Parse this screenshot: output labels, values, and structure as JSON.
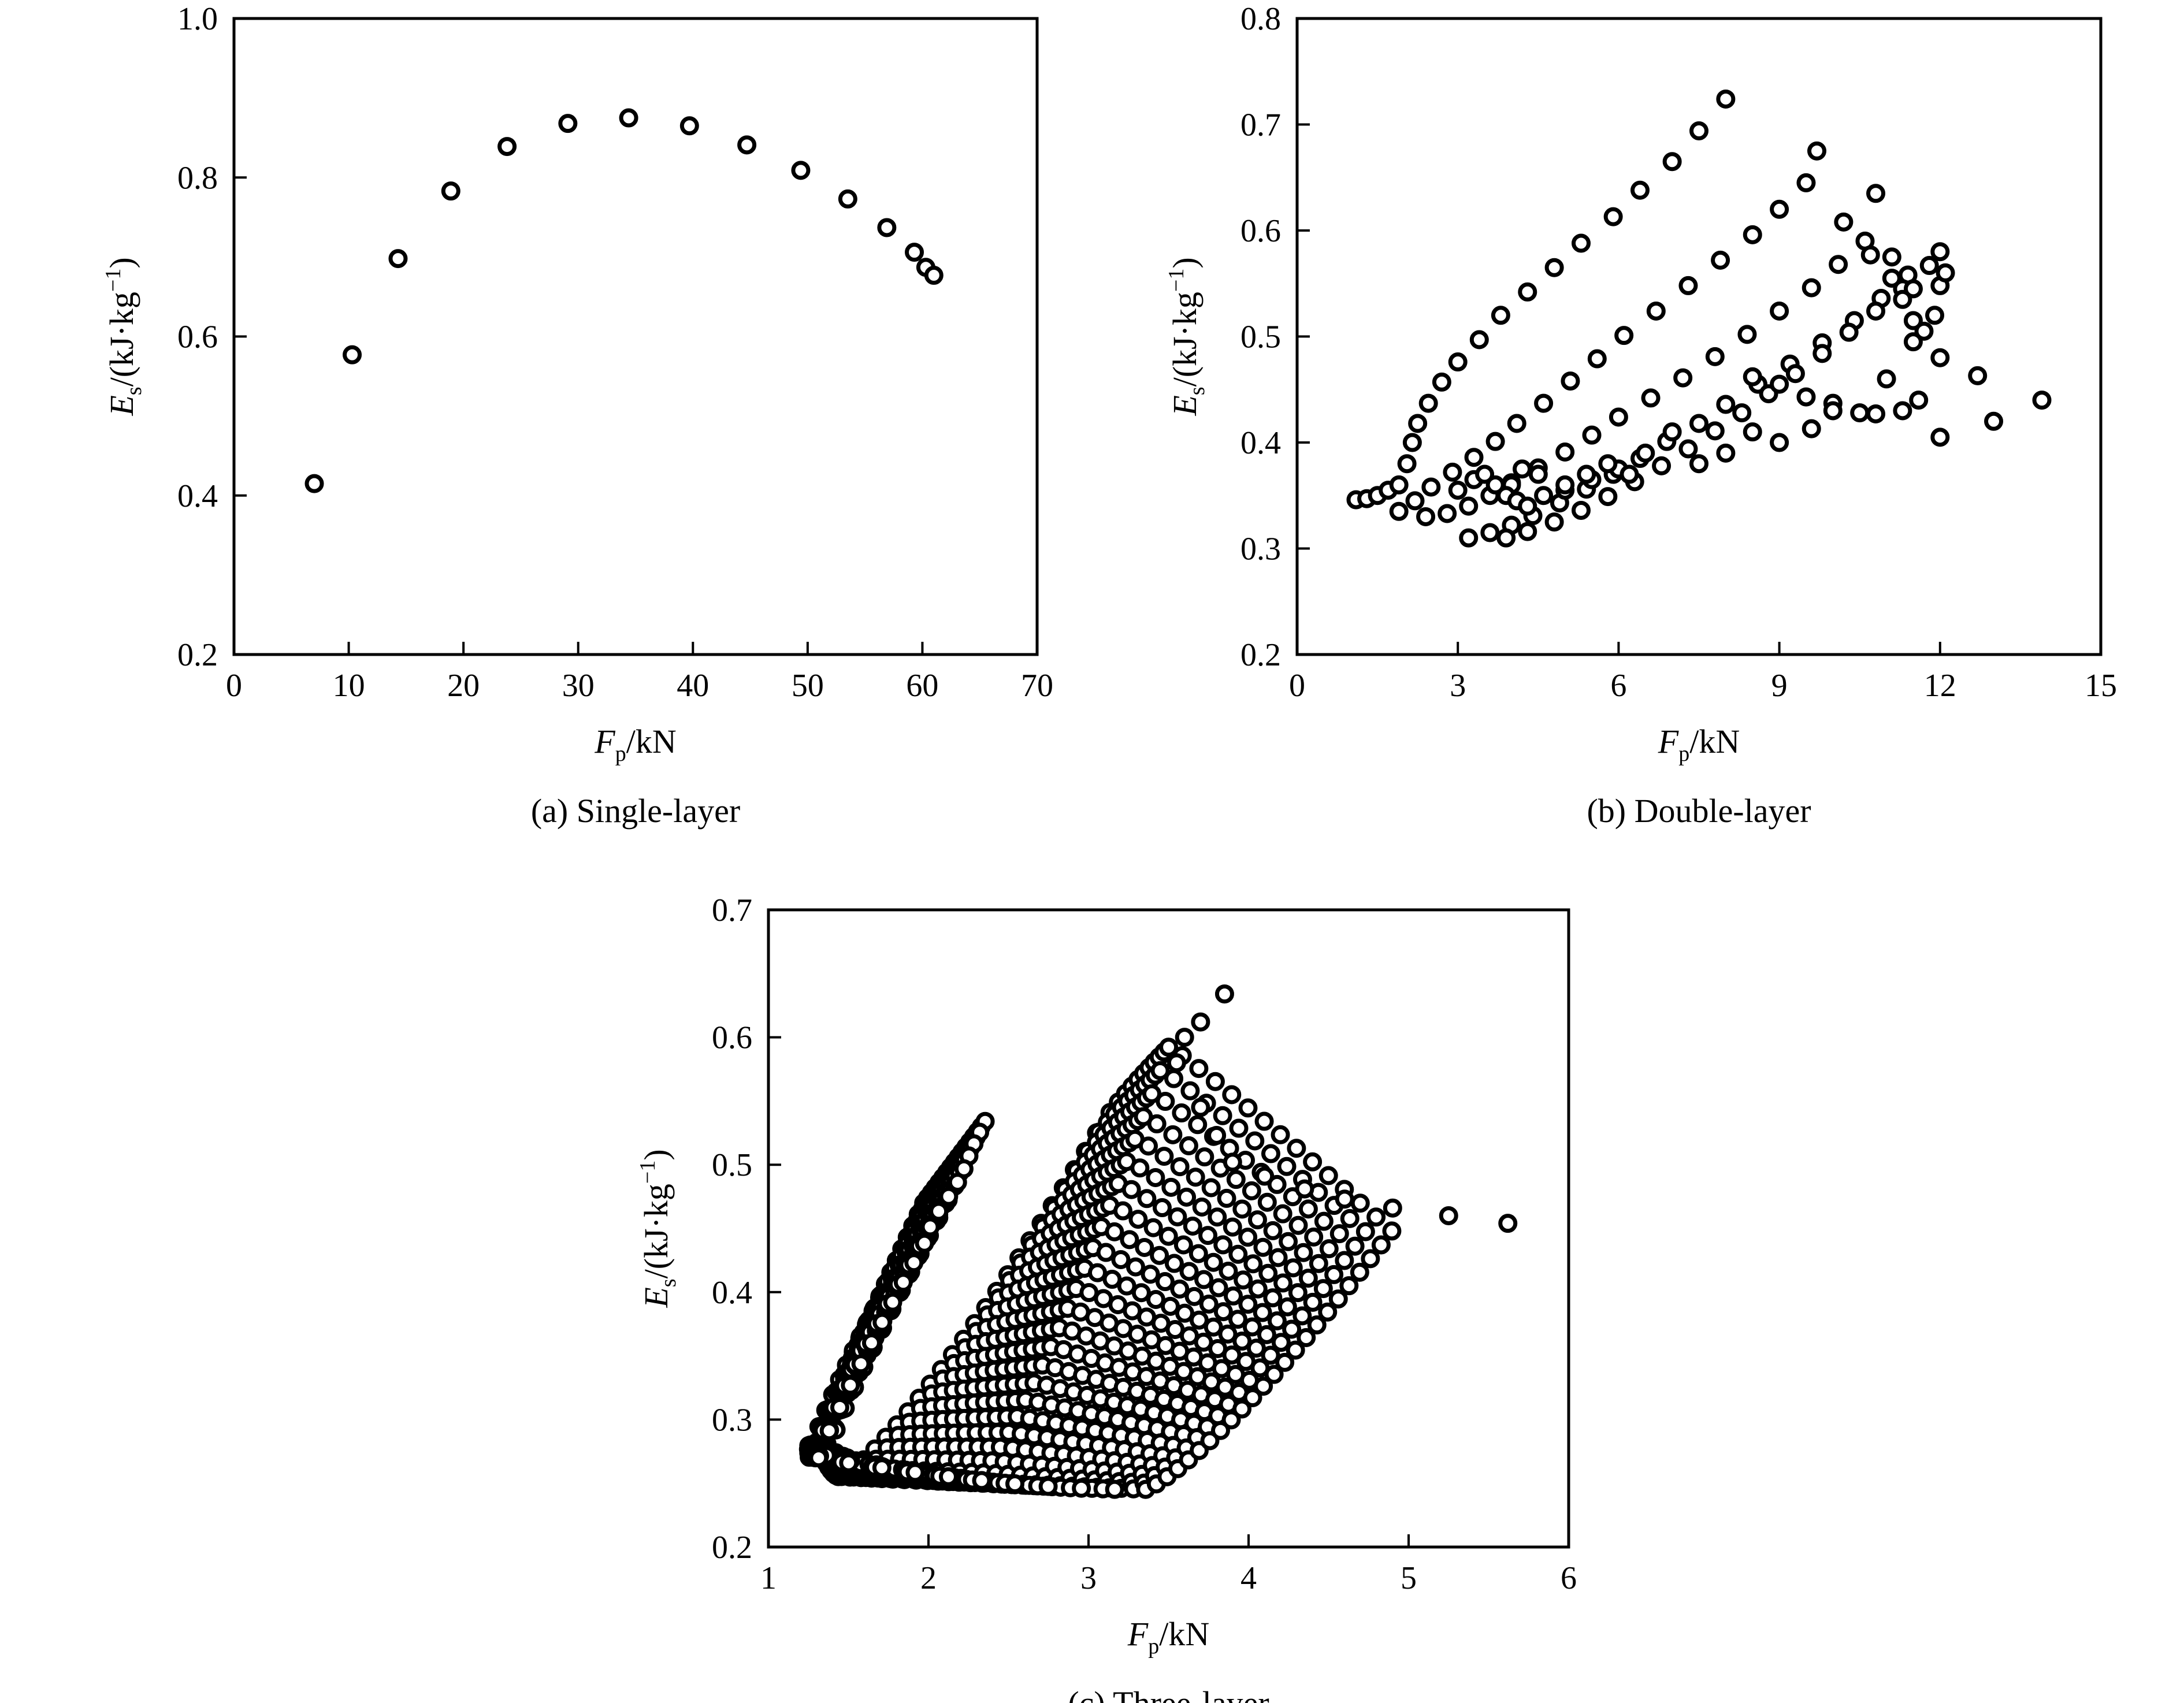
{
  "chart_data": [
    {
      "type": "scatter",
      "caption": "(a) Single-layer",
      "xlabel": {
        "main": "F",
        "sub": "p",
        "unit": "/kN"
      },
      "ylabel": {
        "main": "E",
        "sub": "s",
        "unit": "/(kJ·kg",
        "sup": "−1",
        "close": ")"
      },
      "xlim": [
        0,
        70
      ],
      "ylim": [
        0.2,
        1.0
      ],
      "xticks": [
        "0",
        "10",
        "20",
        "30",
        "40",
        "50",
        "60",
        "70"
      ],
      "yticks": [
        "0.2",
        "0.4",
        "0.6",
        "0.8",
        "1.0"
      ],
      "x": [
        7.0,
        10.3,
        14.3,
        18.9,
        23.8,
        29.1,
        34.4,
        39.7,
        44.7,
        49.4,
        53.5,
        56.9,
        59.3,
        60.3,
        61.0
      ],
      "y": [
        0.415,
        0.577,
        0.698,
        0.783,
        0.839,
        0.868,
        0.875,
        0.865,
        0.841,
        0.809,
        0.773,
        0.737,
        0.706,
        0.687,
        0.677
      ]
    },
    {
      "type": "scatter",
      "caption": "(b) Double-layer",
      "xlabel": {
        "main": "F",
        "sub": "p",
        "unit": "/kN"
      },
      "ylabel": {
        "main": "E",
        "sub": "s",
        "unit": "/(kJ·kg",
        "sup": "−1",
        "close": ")"
      },
      "xlim": [
        0,
        15
      ],
      "ylim": [
        0.2,
        0.8
      ],
      "xticks": [
        "0",
        "3",
        "6",
        "9",
        "12",
        "15"
      ],
      "yticks": [
        "0.2",
        "0.3",
        "0.4",
        "0.5",
        "0.6",
        "0.7",
        "0.8"
      ],
      "series": [
        {
          "x": [
            1.1,
            1.3,
            1.5,
            1.7,
            1.9,
            2.05,
            2.15,
            2.25,
            2.45,
            2.7,
            3.0,
            3.4,
            3.8,
            4.3,
            4.8,
            5.3,
            5.9,
            6.4,
            7.0,
            7.5,
            8.0
          ],
          "y": [
            0.346,
            0.347,
            0.35,
            0.355,
            0.36,
            0.38,
            0.4,
            0.418,
            0.437,
            0.457,
            0.476,
            0.497,
            0.52,
            0.542,
            0.565,
            0.588,
            0.613,
            0.638,
            0.665,
            0.694,
            0.724
          ]
        },
        {
          "x": [
            1.9,
            2.2,
            2.5,
            2.9,
            3.3,
            3.7,
            4.1,
            4.6,
            5.1,
            5.6,
            6.1,
            6.7,
            7.3,
            7.9,
            8.5,
            9.0,
            9.5
          ],
          "y": [
            0.335,
            0.345,
            0.358,
            0.372,
            0.386,
            0.401,
            0.418,
            0.437,
            0.458,
            0.479,
            0.501,
            0.524,
            0.548,
            0.572,
            0.596,
            0.62,
            0.645
          ]
        },
        {
          "x": [
            2.4,
            2.8,
            3.2,
            3.6,
            4.0,
            4.5,
            5.0,
            5.5,
            6.0,
            6.6,
            7.2,
            7.8,
            8.4,
            9.0,
            9.6,
            10.1,
            10.6
          ],
          "y": [
            0.33,
            0.333,
            0.34,
            0.35,
            0.362,
            0.376,
            0.391,
            0.407,
            0.424,
            0.442,
            0.461,
            0.481,
            0.502,
            0.524,
            0.546,
            0.568,
            0.59
          ]
        },
        {
          "x": [
            3.2,
            3.6,
            4.0,
            4.4,
            4.9,
            5.4,
            5.9,
            6.4,
            6.9,
            7.5,
            8.0,
            8.6,
            9.2,
            9.8,
            10.4,
            10.9,
            11.4
          ],
          "y": [
            0.31,
            0.315,
            0.322,
            0.331,
            0.343,
            0.356,
            0.37,
            0.385,
            0.401,
            0.418,
            0.436,
            0.455,
            0.474,
            0.494,
            0.515,
            0.536,
            0.558
          ]
        },
        {
          "x": [
            3.9,
            4.3,
            4.8,
            5.3,
            5.8,
            6.3,
            6.8,
            7.3,
            7.8,
            8.3,
            8.8,
            9.3,
            9.8,
            10.3,
            10.8,
            11.3,
            11.8,
            12.0
          ],
          "y": [
            0.31,
            0.316,
            0.325,
            0.336,
            0.349,
            0.363,
            0.378,
            0.394,
            0.411,
            0.428,
            0.446,
            0.465,
            0.484,
            0.504,
            0.524,
            0.545,
            0.567,
            0.58
          ]
        },
        {
          "x": [
            9.7,
            10.2,
            10.7,
            11.1,
            11.5,
            12.0
          ],
          "y": [
            0.675,
            0.608,
            0.577,
            0.555,
            0.545,
            0.548
          ]
        },
        {
          "x": [
            10.8,
            11.1,
            11.3,
            11.5,
            11.7,
            11.9,
            12.1
          ],
          "y": [
            0.635,
            0.575,
            0.535,
            0.515,
            0.505,
            0.52,
            0.56
          ]
        },
        {
          "x": [
            8.5,
            9.0,
            9.5,
            10.0,
            10.5,
            11.0,
            11.5,
            12.0,
            12.7,
            13.0,
            13.9
          ],
          "y": [
            0.462,
            0.455,
            0.443,
            0.437,
            0.428,
            0.46,
            0.495,
            0.48,
            0.463,
            0.42,
            0.44
          ]
        },
        {
          "x": [
            4.0,
            4.2,
            4.5,
            5.0,
            5.5,
            6.0,
            6.5,
            7.0,
            7.5,
            8.0,
            8.5,
            9.0,
            9.6,
            10.0,
            10.8,
            11.3,
            11.6,
            12.0
          ],
          "y": [
            0.36,
            0.375,
            0.37,
            0.355,
            0.365,
            0.375,
            0.39,
            0.41,
            0.38,
            0.39,
            0.41,
            0.4,
            0.413,
            0.43,
            0.427,
            0.43,
            0.44,
            0.405
          ]
        },
        {
          "x": [
            3.0,
            3.3,
            3.5,
            3.7,
            3.9,
            4.1,
            4.3,
            4.6,
            5.0,
            5.4,
            5.8,
            6.2
          ],
          "y": [
            0.355,
            0.365,
            0.37,
            0.36,
            0.35,
            0.345,
            0.34,
            0.35,
            0.36,
            0.37,
            0.38,
            0.37
          ]
        }
      ]
    },
    {
      "type": "scatter",
      "caption": "(c) Three-layer",
      "xlabel": {
        "main": "F",
        "sub": "p",
        "unit": "/kN"
      },
      "ylabel": {
        "main": "E",
        "sub": "s",
        "unit": "/(kJ·kg",
        "sup": "−1",
        "close": ")"
      },
      "xlim": [
        1,
        6
      ],
      "ylim": [
        0.2,
        0.7
      ],
      "xticks": [
        "1",
        "2",
        "3",
        "4",
        "5",
        "6"
      ],
      "yticks": [
        "0.2",
        "0.3",
        "0.4",
        "0.5",
        "0.6",
        "0.7"
      ],
      "families": [
        {
          "x0": 1.3,
          "y0": 0.275,
          "x1": 3.05,
          "y1": 0.525,
          "dip": 0.024,
          "ax": 1.45,
          "ay": 0.258,
          "spread": 1.9
        },
        {
          "x0": 1.3,
          "y0": 0.272,
          "x1": 3.25,
          "y1": 0.56,
          "dip": 0.022,
          "ax": 1.5,
          "ay": 0.256,
          "spread": 2.0
        },
        {
          "x0": 1.32,
          "y0": 0.268,
          "x1": 3.55,
          "y1": 0.6,
          "dip": 0.02,
          "ax": 1.55,
          "ay": 0.254,
          "spread": 2.1
        },
        {
          "x0": 1.32,
          "y0": 0.265,
          "x1": 3.85,
          "y1": 0.635,
          "dip": 0.018,
          "ax": 1.6,
          "ay": 0.252,
          "spread": 2.2
        }
      ],
      "tips": {
        "x": [
          3.85,
          3.7,
          3.6,
          3.55,
          3.7,
          3.8,
          3.9,
          4.1,
          4.35,
          4.6,
          4.9,
          5.25,
          5.62
        ],
        "y": [
          0.634,
          0.612,
          0.6,
          0.58,
          0.545,
          0.523,
          0.502,
          0.491,
          0.481,
          0.473,
          0.466,
          0.46,
          0.454
        ]
      }
    }
  ]
}
